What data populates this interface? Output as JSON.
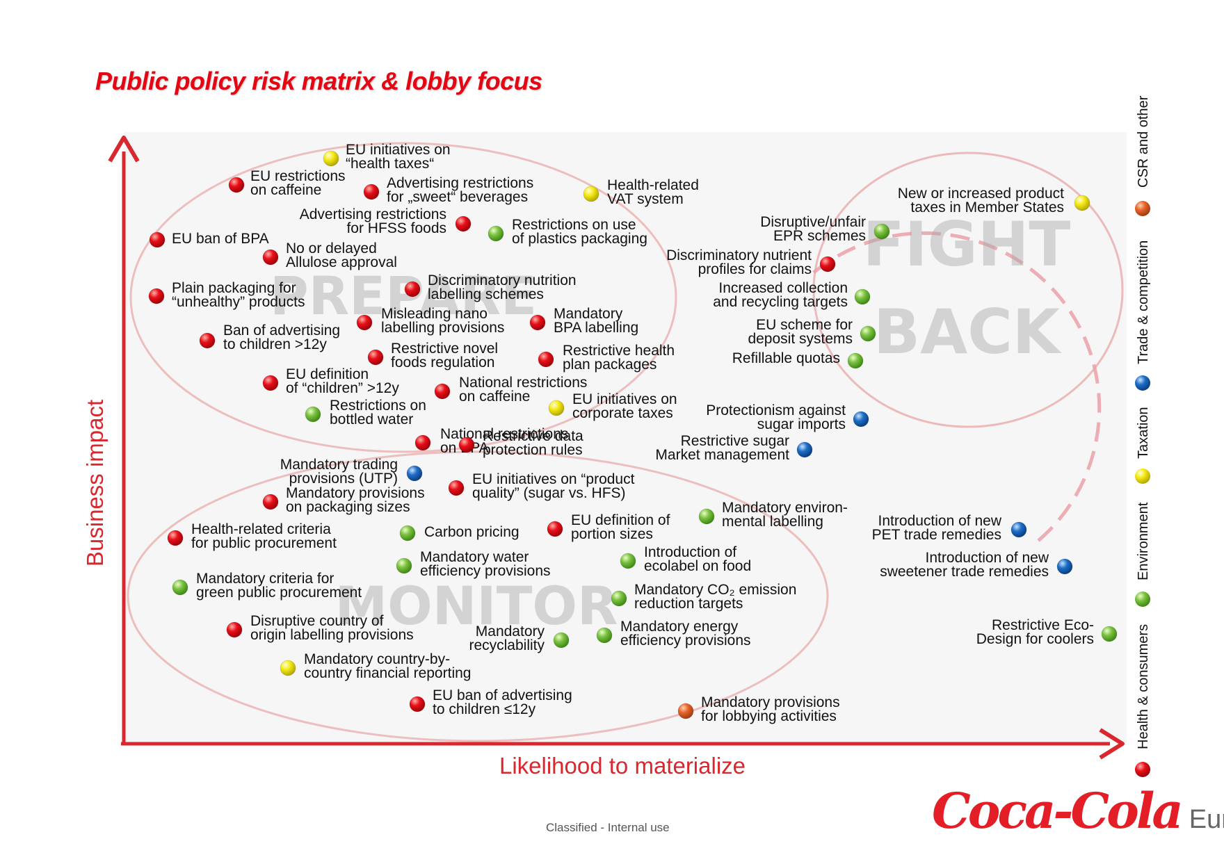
{
  "title": "Public policy risk matrix & lobby focus",
  "axes": {
    "y_label": "Business impact",
    "x_label": "Likelihood to materialize"
  },
  "zones": [
    "PREPARE",
    "FIGHT",
    "BACK",
    "MONITOR"
  ],
  "legend": [
    {
      "label": "Health & consumers",
      "color": "#e8101a"
    },
    {
      "label": "Environment",
      "color": "#7cc242"
    },
    {
      "label": "Taxation",
      "color": "#f5ea14"
    },
    {
      "label": "Trade & competition",
      "color": "#1e6ec8"
    },
    {
      "label": "CSR and other",
      "color": "#e8632b"
    }
  ],
  "colors": {
    "health": "#e8101a",
    "environment": "#7cc242",
    "taxation": "#f5ea14",
    "trade": "#1e6ec8",
    "csr": "#e8632b",
    "title": "#e30613",
    "axis": "#d9272e"
  },
  "risks": [
    {
      "lines": [
        "EU initiatives on",
        "“health taxes“"
      ],
      "cat": "taxation"
    },
    {
      "lines": [
        "EU restrictions",
        "on caffeine"
      ],
      "cat": "health"
    },
    {
      "lines": [
        "Advertising restrictions",
        "for „sweet“ beverages"
      ],
      "cat": "health"
    },
    {
      "lines": [
        "Health-related",
        "VAT system"
      ],
      "cat": "taxation"
    },
    {
      "lines": [
        "New or increased product",
        "taxes in Member States"
      ],
      "cat": "taxation"
    },
    {
      "lines": [
        "Advertising restrictions",
        "for HFSS foods"
      ],
      "cat": "health"
    },
    {
      "lines": [
        "Restrictions on use",
        "of plastics packaging"
      ],
      "cat": "environment"
    },
    {
      "lines": [
        "Disruptive/unfair",
        "EPR schemes"
      ],
      "cat": "environment"
    },
    {
      "lines": [
        "EU ban of BPA"
      ],
      "cat": "health"
    },
    {
      "lines": [
        "No or delayed",
        "Allulose approval"
      ],
      "cat": "health"
    },
    {
      "lines": [
        "Discriminatory nutrient",
        "profiles for claims"
      ],
      "cat": "health"
    },
    {
      "lines": [
        "Plain packaging for",
        "“unhealthy” products"
      ],
      "cat": "health"
    },
    {
      "lines": [
        "Discriminatory nutrition",
        "labelling schemes"
      ],
      "cat": "health"
    },
    {
      "lines": [
        "Increased collection",
        "and recycling targets"
      ],
      "cat": "environment"
    },
    {
      "lines": [
        "Misleading nano",
        "labelling provisions"
      ],
      "cat": "health"
    },
    {
      "lines": [
        "Mandatory",
        "BPA labelling"
      ],
      "cat": "health"
    },
    {
      "lines": [
        "Ban of advertising",
        "to children >12y"
      ],
      "cat": "health"
    },
    {
      "lines": [
        "EU scheme for",
        "deposit systems"
      ],
      "cat": "environment"
    },
    {
      "lines": [
        "Restrictive novel",
        "foods regulation"
      ],
      "cat": "health"
    },
    {
      "lines": [
        "Restrictive health",
        "plan packages"
      ],
      "cat": "health"
    },
    {
      "lines": [
        "Refillable quotas"
      ],
      "cat": "environment"
    },
    {
      "lines": [
        "EU definition",
        "of “children” >12y"
      ],
      "cat": "health"
    },
    {
      "lines": [
        "National restrictions",
        "on caffeine"
      ],
      "cat": "health"
    },
    {
      "lines": [
        "EU initiatives on",
        "corporate taxes"
      ],
      "cat": "taxation"
    },
    {
      "lines": [
        "Restrictions on",
        "bottled water"
      ],
      "cat": "environment"
    },
    {
      "lines": [
        "Protectionism against",
        "sugar imports"
      ],
      "cat": "trade"
    },
    {
      "lines": [
        "National restrictions",
        "on BPA"
      ],
      "cat": "health"
    },
    {
      "lines": [
        "Restrictive data",
        "protection rules"
      ],
      "cat": "health"
    },
    {
      "lines": [
        "Restrictive sugar",
        "Market management"
      ],
      "cat": "trade"
    },
    {
      "lines": [
        "Mandatory trading",
        "provisions (UTP)"
      ],
      "cat": "trade"
    },
    {
      "lines": [
        "EU initiatives on “product",
        "quality” (sugar vs. HFS)"
      ],
      "cat": "health"
    },
    {
      "lines": [
        "Mandatory provisions",
        "on packaging sizes"
      ],
      "cat": "health"
    },
    {
      "lines": [
        "Mandatory environ-",
        "mental labelling"
      ],
      "cat": "environment"
    },
    {
      "lines": [
        "Health-related criteria",
        "for public procurement"
      ],
      "cat": "health"
    },
    {
      "lines": [
        "Carbon pricing"
      ],
      "cat": "environment"
    },
    {
      "lines": [
        "EU definition of",
        "portion sizes"
      ],
      "cat": "health"
    },
    {
      "lines": [
        "Introduction of new",
        "PET trade remedies"
      ],
      "cat": "trade"
    },
    {
      "lines": [
        "Mandatory water",
        "efficiency provisions"
      ],
      "cat": "environment"
    },
    {
      "lines": [
        "Introduction of",
        "ecolabel on food"
      ],
      "cat": "environment"
    },
    {
      "lines": [
        "Introduction of new",
        "sweetener trade remedies"
      ],
      "cat": "trade"
    },
    {
      "lines": [
        "Mandatory criteria for",
        "green public procurement"
      ],
      "cat": "environment"
    },
    {
      "lines": [
        "Mandatory CO₂ emission",
        "reduction targets"
      ],
      "cat": "environment"
    },
    {
      "lines": [
        "Disruptive country of",
        "origin labelling provisions"
      ],
      "cat": "health"
    },
    {
      "lines": [
        "Mandatory",
        "recyclability"
      ],
      "cat": "environment"
    },
    {
      "lines": [
        "Mandatory energy",
        "efficiency provisions"
      ],
      "cat": "environment"
    },
    {
      "lines": [
        "Restrictive Eco-",
        "Design for coolers"
      ],
      "cat": "environment"
    },
    {
      "lines": [
        "Mandatory country-by-",
        "country financial reporting"
      ],
      "cat": "taxation"
    },
    {
      "lines": [
        "EU ban of advertising",
        "to children ≤12y"
      ],
      "cat": "health"
    },
    {
      "lines": [
        "Mandatory provisions",
        "for lobbying activities"
      ],
      "cat": "csr"
    }
  ],
  "footer": "Classified - Internal use",
  "logo": {
    "script": "Coca-Cola",
    "region": "Europe"
  }
}
